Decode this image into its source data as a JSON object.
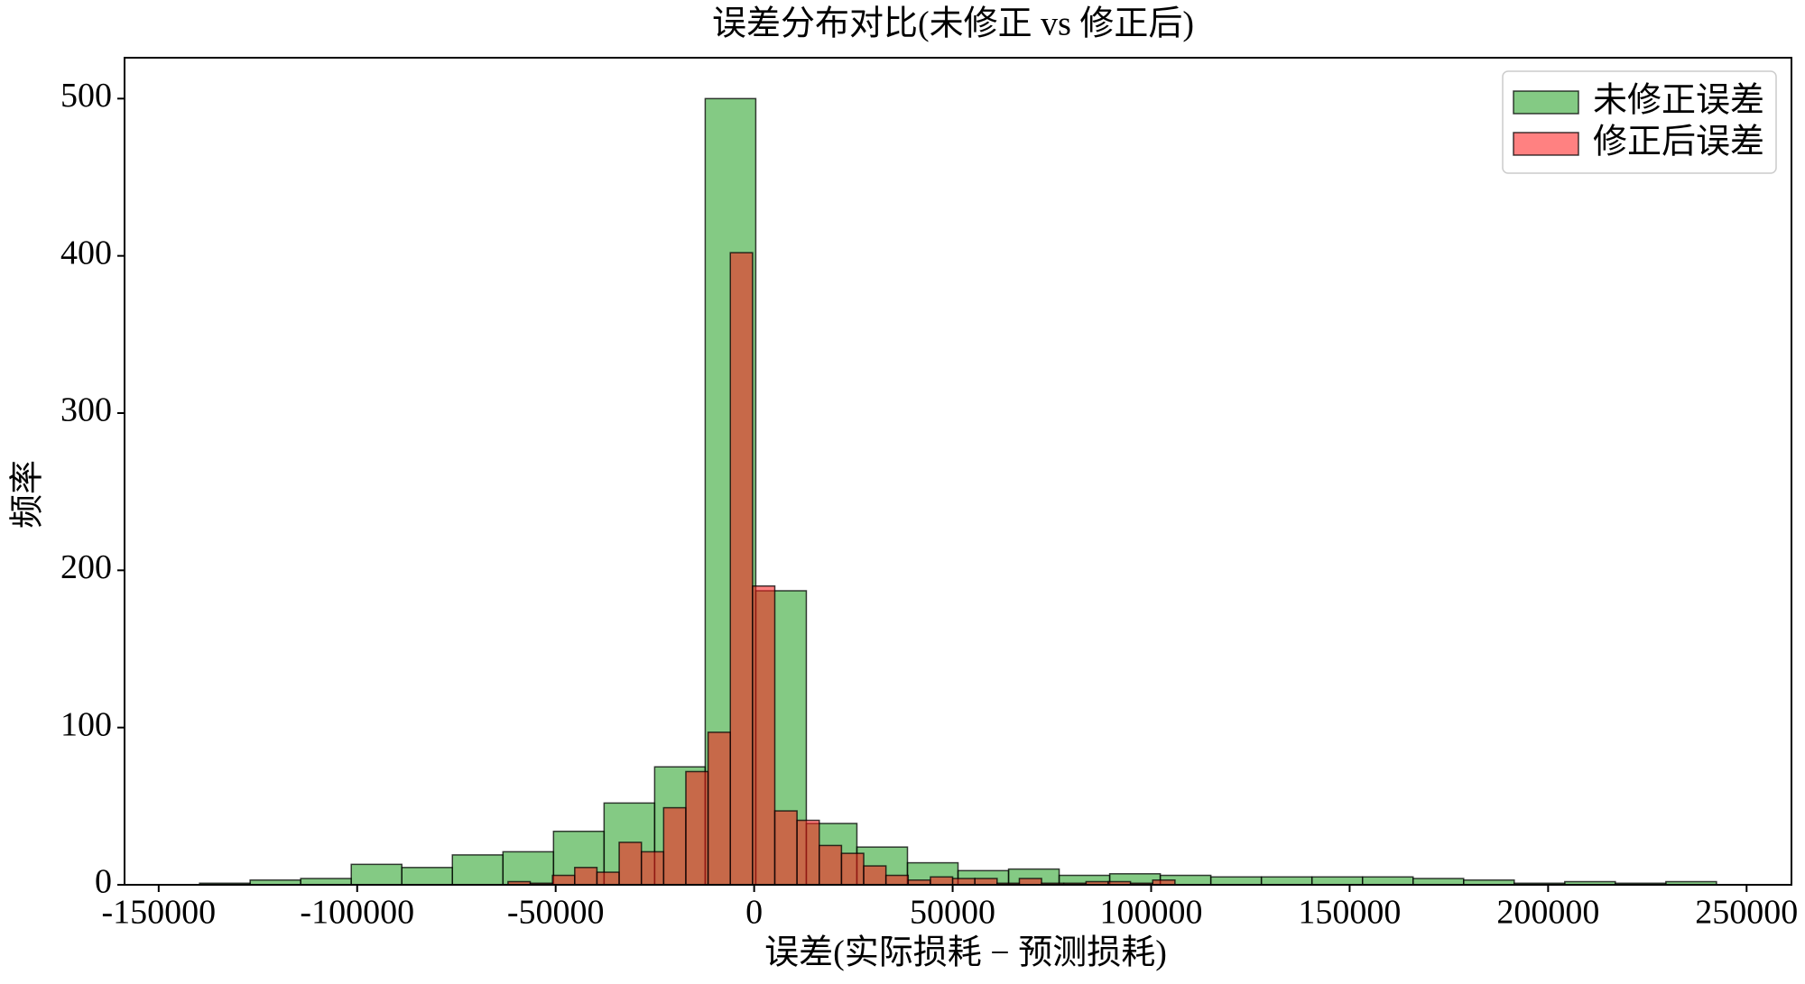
{
  "chart_data": {
    "type": "histogram",
    "title": "误差分布对比(未修正 vs 修正后)",
    "x_label": "误差(实际损耗 − 预测损耗)",
    "y_label": "频率",
    "xlim": [
      -158600,
      261300
    ],
    "ylim": [
      0,
      526
    ],
    "xticks": [
      -150000,
      -100000,
      -50000,
      0,
      50000,
      100000,
      150000,
      200000,
      250000
    ],
    "yticks": [
      0,
      100,
      200,
      300,
      400,
      500
    ],
    "legend": "upper right",
    "alpha": 0.55,
    "series": [
      {
        "name": "未修正误差",
        "color": "#1f9e1f",
        "bins": [
          -139700,
          -126963,
          -114226,
          -101489,
          -88752,
          -76015,
          -63278,
          -50541,
          -37804,
          -25067,
          -12330,
          407,
          13144,
          25881,
          38618,
          51355,
          64092,
          76829,
          89566,
          102303,
          115040,
          127777,
          140514,
          153251,
          165988,
          178725,
          191462,
          204199,
          216936,
          229673,
          242410
        ],
        "values": [
          1,
          3,
          4,
          13,
          11,
          19,
          21,
          34,
          52,
          75,
          500,
          187,
          39,
          24,
          14,
          9,
          10,
          6,
          7,
          6,
          5,
          5,
          5,
          5,
          4,
          3,
          1,
          2,
          1,
          2
        ]
      },
      {
        "name": "修正后误差",
        "color": "#ff1a1a",
        "bins": [
          -62000,
          -56400,
          -50800,
          -45200,
          -39600,
          -34000,
          -28400,
          -22800,
          -17200,
          -11600,
          -6000,
          -400,
          5200,
          10800,
          16400,
          22000,
          27600,
          33200,
          38800,
          44400,
          50000,
          55600,
          61200,
          66800,
          72400,
          78000,
          83600,
          89200,
          94800,
          100400,
          106000
        ],
        "values": [
          2,
          1,
          6,
          11,
          8,
          27,
          21,
          49,
          72,
          97,
          402,
          190,
          47,
          41,
          25,
          20,
          12,
          6,
          3,
          5,
          4,
          4,
          1,
          4,
          1,
          1,
          2,
          2,
          1,
          3
        ]
      }
    ]
  }
}
